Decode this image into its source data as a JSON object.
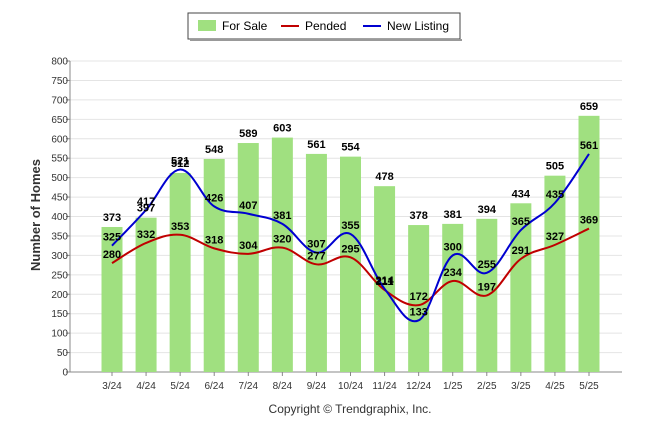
{
  "chart_data": {
    "type": "bar",
    "ylabel": "Number of Homes",
    "xlabel": "",
    "ylim": [
      0,
      800
    ],
    "yticks": [
      0,
      50,
      100,
      150,
      200,
      250,
      300,
      350,
      400,
      450,
      500,
      550,
      600,
      650,
      700,
      750,
      800
    ],
    "grid": true,
    "legend_position": "top-center",
    "categories": [
      "3/24",
      "4/24",
      "5/24",
      "6/24",
      "7/24",
      "8/24",
      "9/24",
      "10/24",
      "11/24",
      "12/24",
      "1/25",
      "2/25",
      "3/25",
      "4/25",
      "5/25"
    ],
    "series": [
      {
        "name": "For Sale",
        "kind": "bar",
        "color": "#a0e080",
        "values": [
          373,
          397,
          512,
          548,
          589,
          603,
          561,
          554,
          478,
          378,
          381,
          394,
          434,
          505,
          659
        ]
      },
      {
        "name": "Pended",
        "kind": "line",
        "color": "#c00000",
        "values": [
          280,
          332,
          353,
          318,
          304,
          320,
          277,
          295,
          211,
          172,
          234,
          197,
          291,
          327,
          369
        ]
      },
      {
        "name": "New Listing",
        "kind": "line",
        "color": "#0000d0",
        "values": [
          325,
          417,
          521,
          426,
          407,
          381,
          307,
          355,
          214,
          133,
          300,
          255,
          365,
          435,
          561
        ]
      }
    ]
  },
  "credit": "Copyright © Trendgraphix, Inc."
}
